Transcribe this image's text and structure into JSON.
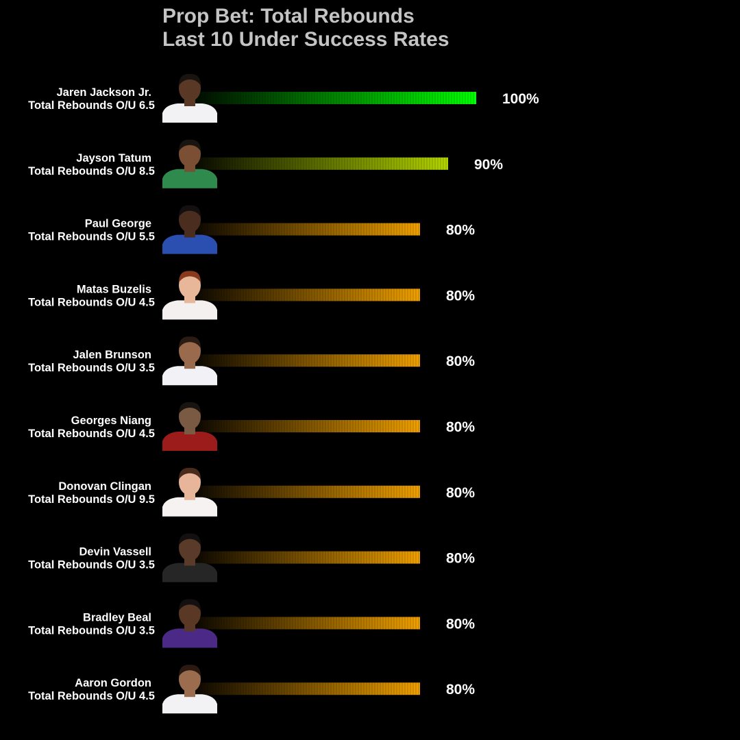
{
  "title": {
    "line1": "Prop Bet: Total Rebounds",
    "line2": "Last 10 Under Success Rates"
  },
  "colors": {
    "background": "#000000",
    "title": "#c4c4c4",
    "label": "#ffffff",
    "bar_100": "#00ff00",
    "bar_90": "#b3d400",
    "bar_80": "#f0a000"
  },
  "chart_data": {
    "type": "bar",
    "orientation": "horizontal",
    "unit": "%",
    "xlim": [
      0,
      100
    ],
    "grid": false,
    "legend": "none",
    "categories": [
      "Jaren Jackson Jr.",
      "Jayson Tatum",
      "Paul George",
      "Matas Buzelis",
      "Jalen Brunson",
      "Georges Niang",
      "Donovan Clingan",
      "Devin Vassell",
      "Bradley Beal",
      "Aaron Gordon"
    ],
    "lines": [
      6.5,
      8.5,
      5.5,
      4.5,
      3.5,
      4.5,
      9.5,
      3.5,
      3.5,
      4.5
    ],
    "values": [
      100,
      90,
      80,
      80,
      80,
      80,
      80,
      80,
      80,
      80
    ],
    "data_labels": [
      "100%",
      "90%",
      "80%",
      "80%",
      "80%",
      "80%",
      "80%",
      "80%",
      "80%",
      "80%"
    ],
    "sublabels": [
      "Total Rebounds O/U 6.5",
      "Total Rebounds O/U 8.5",
      "Total Rebounds O/U 5.5",
      "Total Rebounds O/U 4.5",
      "Total Rebounds O/U 3.5",
      "Total Rebounds O/U 4.5",
      "Total Rebounds O/U 9.5",
      "Total Rebounds O/U 3.5",
      "Total Rebounds O/U 3.5",
      "Total Rebounds O/U 4.5"
    ],
    "headshots": [
      {
        "jersey": "#f2f2f4",
        "skin": "#5a3826",
        "hair": "#1a1411"
      },
      {
        "jersey": "#2f8a4e",
        "skin": "#7a4f34",
        "hair": "#1a1411"
      },
      {
        "jersey": "#2a4fb0",
        "skin": "#4a2d1e",
        "hair": "#141010"
      },
      {
        "jersey": "#f4f0f0",
        "skin": "#e8b79a",
        "hair": "#8a3a1c"
      },
      {
        "jersey": "#f2f2f6",
        "skin": "#9a6a4c",
        "hair": "#2a1c14"
      },
      {
        "jersey": "#9c1c1c",
        "skin": "#7a5a42",
        "hair": "#1a1410"
      },
      {
        "jersey": "#f6f2f2",
        "skin": "#e6b59a",
        "hair": "#4a2c1c"
      },
      {
        "jersey": "#262626",
        "skin": "#5a3a28",
        "hair": "#141010"
      },
      {
        "jersey": "#4a2a86",
        "skin": "#5a3826",
        "hair": "#141010"
      },
      {
        "jersey": "#f2f2f4",
        "skin": "#9c6c4e",
        "hair": "#2a1a12"
      }
    ]
  }
}
